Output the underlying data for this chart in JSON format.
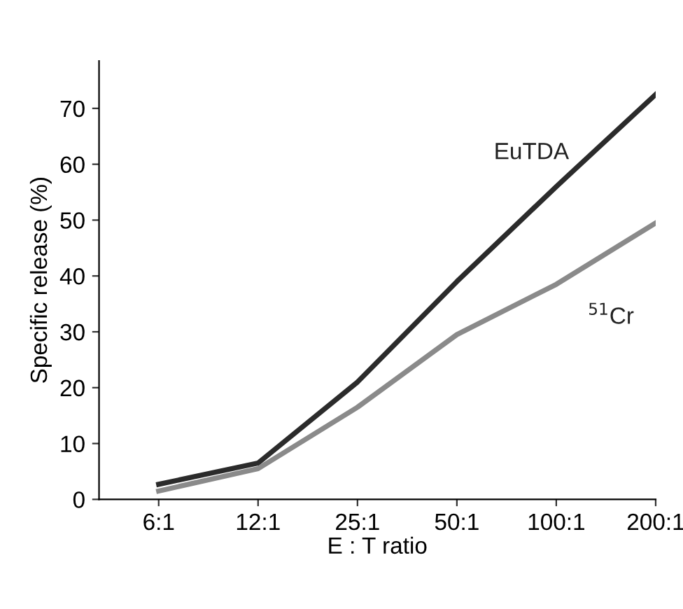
{
  "chart_data": {
    "type": "line",
    "xlabel": "E : T ratio",
    "ylabel": "Specific release (%)",
    "categories": [
      "6:1",
      "12:1",
      "25:1",
      "50:1",
      "100:1",
      "200:1"
    ],
    "series": [
      {
        "name": "EuTDA",
        "color": "#2b2b2b",
        "values": [
          2.7,
          6.5,
          21,
          39,
          56,
          72.5
        ]
      },
      {
        "name": "$^{51}$Cr",
        "color": "#8a8a8a",
        "values": [
          1.5,
          5.5,
          16.5,
          29.5,
          38.5,
          49.5
        ]
      }
    ],
    "ylim": [
      0,
      78.5
    ],
    "yticks": [
      0,
      10,
      20,
      30,
      40,
      50,
      60,
      70
    ],
    "grid": false,
    "legend": false,
    "marker": "none",
    "line_style": "solid"
  }
}
